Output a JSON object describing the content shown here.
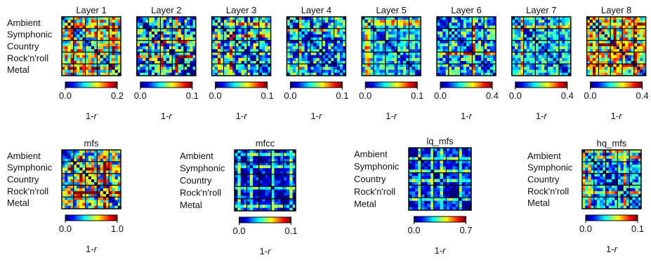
{
  "figure": {
    "genres": [
      "Ambient",
      "Symphonic",
      "Country",
      "Rock'n'roll",
      "Metal"
    ],
    "colorbar_label_prefix": "1-",
    "colorbar_label_var": "r"
  },
  "chart_data": [
    {
      "type": "heatmap",
      "title": "Layer 1",
      "clim": [
        0.0,
        0.2
      ],
      "tick_labels": [
        "0.0",
        "0.2"
      ],
      "seed": 11,
      "bias": 0.55,
      "spread": 0.35,
      "stripes": [
        3,
        17
      ],
      "rows_labeled": true
    },
    {
      "type": "heatmap",
      "title": "Layer 2",
      "clim": [
        0.0,
        0.1
      ],
      "tick_labels": [
        "0.0",
        "0.1"
      ],
      "seed": 23,
      "bias": 0.35,
      "spread": 0.35,
      "stripes": [
        8,
        13,
        21
      ],
      "rows_labeled": false
    },
    {
      "type": "heatmap",
      "title": "Layer 3",
      "clim": [
        0.0,
        0.1
      ],
      "tick_labels": [
        "0.0",
        "0.1"
      ],
      "seed": 37,
      "bias": 0.35,
      "spread": 0.3,
      "stripes": [
        2,
        6
      ],
      "rows_labeled": false
    },
    {
      "type": "heatmap",
      "title": "Layer 4",
      "clim": [
        0.0,
        0.1
      ],
      "tick_labels": [
        "0.0",
        "0.1"
      ],
      "seed": 41,
      "bias": 0.3,
      "spread": 0.3,
      "stripes": [
        4
      ],
      "rows_labeled": false
    },
    {
      "type": "heatmap",
      "title": "Layer 5",
      "clim": [
        0.0,
        0.1
      ],
      "tick_labels": [
        "0.0",
        "0.1"
      ],
      "seed": 53,
      "bias": 0.35,
      "spread": 0.2,
      "stripes": [
        1,
        2
      ],
      "rows_labeled": false
    },
    {
      "type": "heatmap",
      "title": "Layer 6",
      "clim": [
        0.0,
        0.4
      ],
      "tick_labels": [
        "0.0",
        "0.4"
      ],
      "seed": 67,
      "bias": 0.35,
      "spread": 0.25,
      "stripes": [
        12
      ],
      "rows_labeled": false
    },
    {
      "type": "heatmap",
      "title": "Layer 7",
      "clim": [
        0.0,
        0.4
      ],
      "tick_labels": [
        "0.0",
        "0.4"
      ],
      "seed": 71,
      "bias": 0.35,
      "spread": 0.22,
      "stripes": [
        3
      ],
      "rows_labeled": false
    },
    {
      "type": "heatmap",
      "title": "Layer 8",
      "clim": [
        0.0,
        0.4
      ],
      "tick_labels": [
        "0.0",
        "0.4"
      ],
      "seed": 83,
      "bias": 0.55,
      "spread": 0.35,
      "stripes": [
        2,
        9,
        16
      ],
      "rows_labeled": false
    },
    {
      "type": "heatmap",
      "title": "mfs",
      "clim": [
        0.0,
        1.0
      ],
      "tick_labels": [
        "0.0",
        "1.0"
      ],
      "seed": 97,
      "bias": 0.5,
      "spread": 0.35,
      "stripes": [
        6,
        14
      ],
      "rows_labeled": true
    },
    {
      "type": "heatmap",
      "title": "mfcc",
      "clim": [
        0.0,
        0.1
      ],
      "tick_labels": [
        "0.0",
        "0.1"
      ],
      "seed": 101,
      "bias": 0.12,
      "spread": 0.15,
      "stripes": [
        1,
        5,
        12,
        18
      ],
      "rows_labeled": true
    },
    {
      "type": "heatmap",
      "title": "lq_mfs",
      "clim": [
        0.0,
        0.7
      ],
      "tick_labels": [
        "0.0",
        "0.7"
      ],
      "seed": 113,
      "bias": 0.15,
      "spread": 0.15,
      "stripes": [
        3,
        7,
        10,
        16
      ],
      "rows_labeled": true
    },
    {
      "type": "heatmap",
      "title": "hq_mfs",
      "clim": [
        0.0,
        0.1
      ],
      "tick_labels": [
        "0.0",
        "0.1"
      ],
      "seed": 127,
      "bias": 0.3,
      "spread": 0.25,
      "stripes": [
        0,
        2,
        14
      ],
      "rows_labeled": true
    }
  ]
}
